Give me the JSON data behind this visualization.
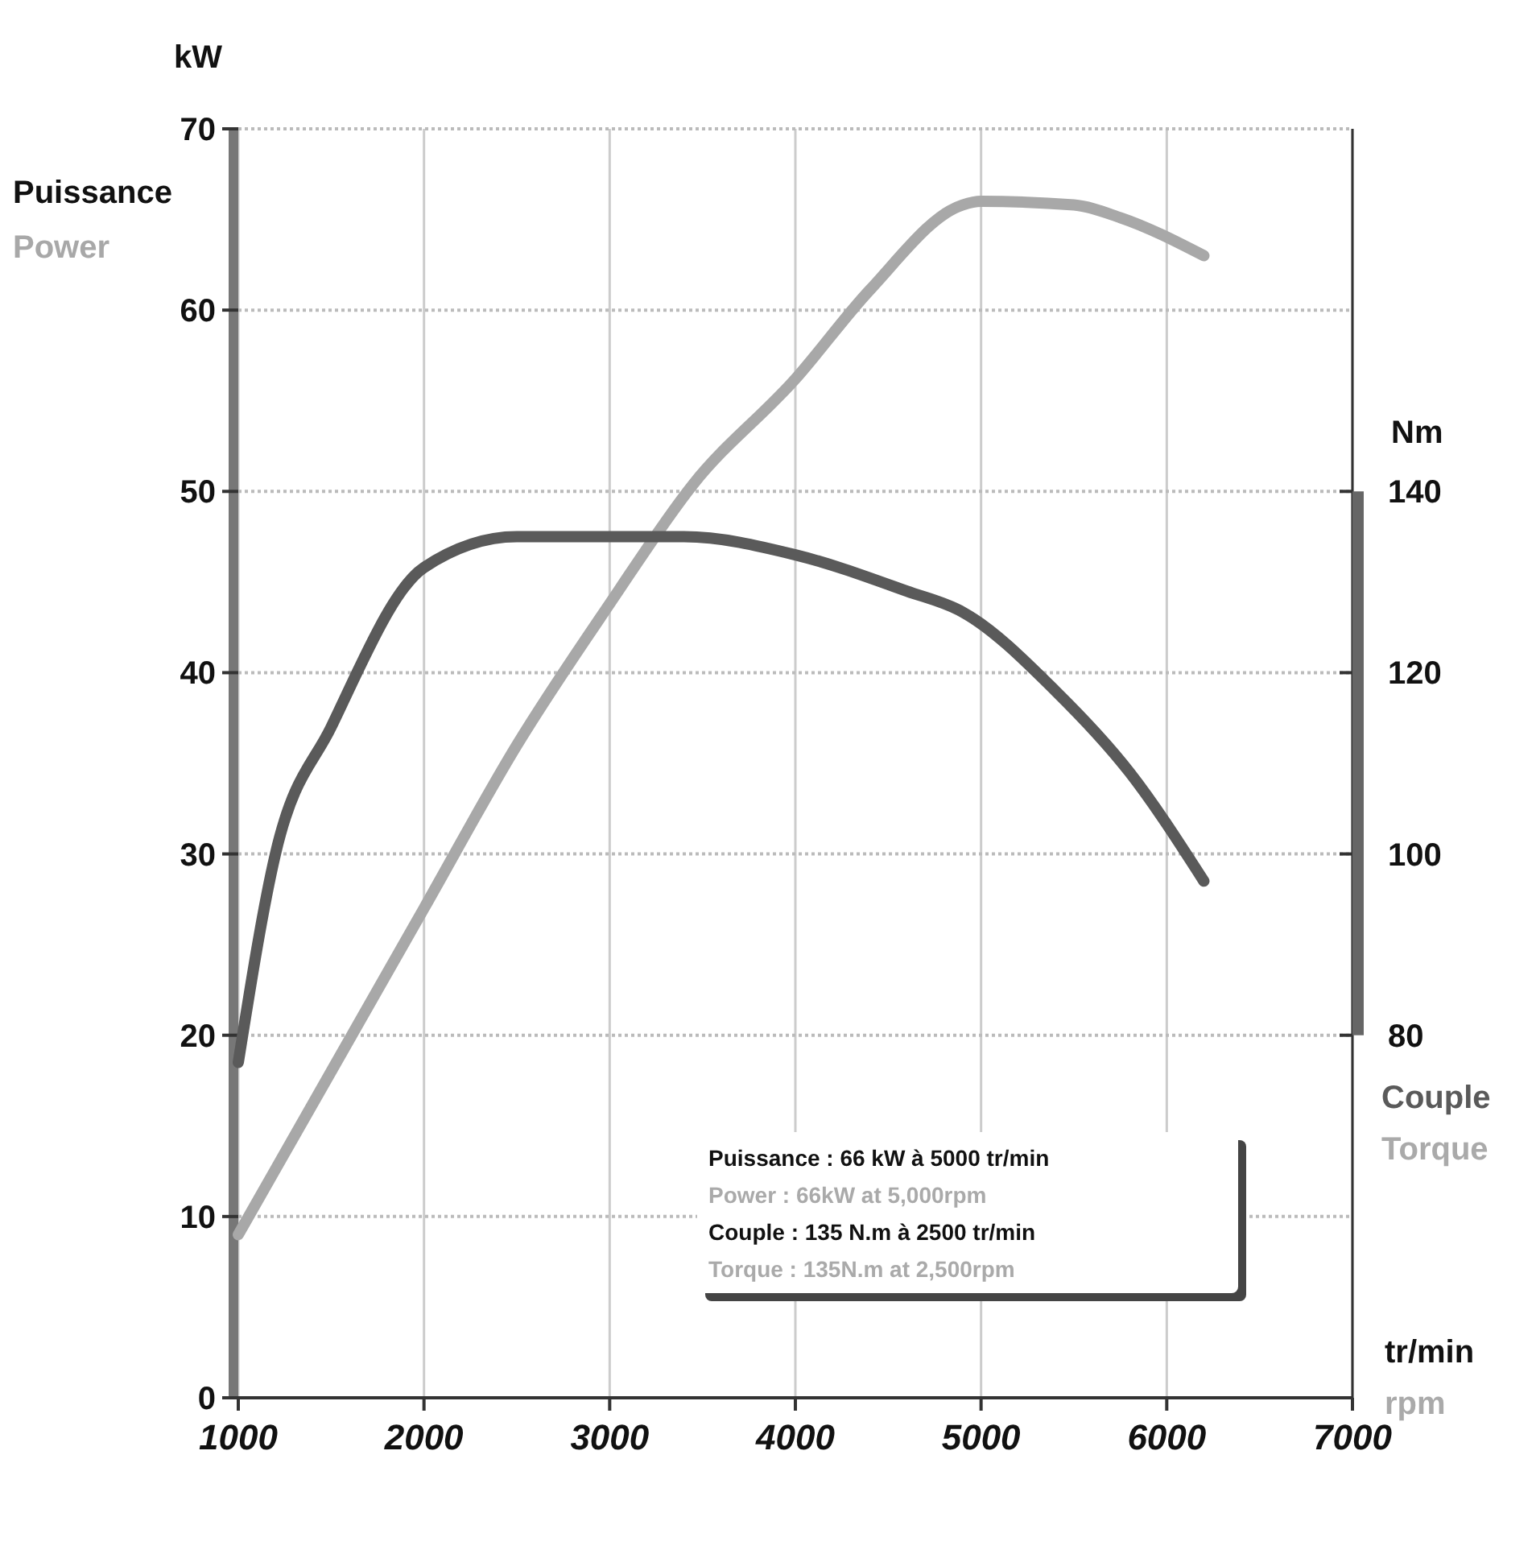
{
  "chart_data": {
    "type": "line",
    "xlabel": "tr/min",
    "ylabel": "kW",
    "y2label": "Nm",
    "xlim": [
      1000,
      7000
    ],
    "xticks": [
      1000,
      2000,
      3000,
      4000,
      5000,
      6000,
      7000
    ],
    "ylim": [
      0,
      70
    ],
    "yticks": [
      0,
      10,
      20,
      30,
      40,
      50,
      60,
      70
    ],
    "y2lim": [
      40,
      180
    ],
    "y2ticks": [
      80,
      100,
      120,
      140
    ],
    "grid": true,
    "marker": "none",
    "line_style": "solid",
    "series": [
      {
        "name": "Power",
        "color": "#a8a8a8",
        "x": [
          1000,
          1500,
          2000,
          2500,
          3000,
          3450,
          4000,
          4400,
          4900,
          5000,
          5500,
          5750,
          6200
        ],
        "values": [
          9,
          18,
          27,
          36,
          43.8,
          50.4,
          56.2,
          61.1,
          65.8,
          66,
          65.8,
          65.1,
          63
        ]
      },
      {
        "name": "Couple",
        "color": "#5a5a5a",
        "axis": "y2",
        "x": [
          1000,
          1200,
          1500,
          2000,
          2500,
          3000,
          3400,
          4000,
          4600,
          4900,
          5400,
          5800,
          6200
        ],
        "values": [
          77,
          100,
          114,
          131.6,
          135,
          135,
          135,
          133,
          129,
          126.7,
          118,
          109,
          97
        ]
      }
    ],
    "annotations": [
      "Puissance : 66 kW à 5000 tr/min",
      "Power : 66kW at 5,000rpm",
      "Couple : 135 N.m à 2500 tr/min",
      "Torque : 135N.m at 2,500rpm",
      "Puissance",
      "Torque",
      "rpm"
    ]
  }
}
